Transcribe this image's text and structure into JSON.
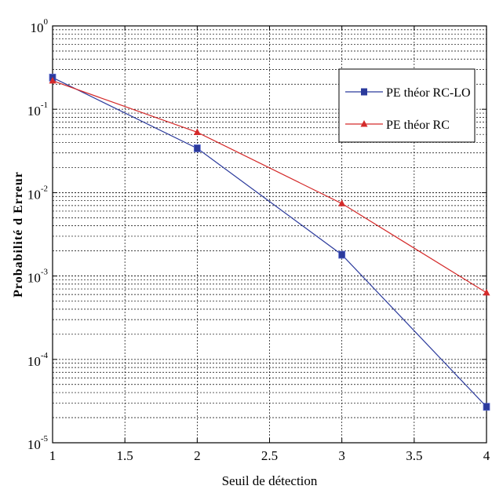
{
  "chart_data": {
    "type": "line",
    "title": "",
    "xlabel": "Seuil de détection",
    "ylabel": "Probabilité d Erreur",
    "xlim": [
      1,
      4
    ],
    "ylim": [
      1e-05,
      1
    ],
    "yscale": "log",
    "grid": true,
    "legend_position": "top-right",
    "xticks": [
      1,
      1.5,
      2,
      2.5,
      3,
      3.5,
      4
    ],
    "xtick_labels": [
      "1",
      "1.5",
      "2",
      "2.5",
      "3",
      "3.5",
      "4"
    ],
    "yticks": [
      {
        "value": 1,
        "base": "10",
        "exp": "0"
      },
      {
        "value": 0.1,
        "base": "10",
        "exp": "-1"
      },
      {
        "value": 0.01,
        "base": "10",
        "exp": "-2"
      },
      {
        "value": 0.001,
        "base": "10",
        "exp": "-3"
      },
      {
        "value": 0.0001,
        "base": "10",
        "exp": "-4"
      },
      {
        "value": 1e-05,
        "base": "10",
        "exp": "-5"
      }
    ],
    "series": [
      {
        "name": "PE théor RC-LO",
        "color": "#2b3a9c",
        "marker": "square",
        "x": [
          1,
          2,
          3,
          4
        ],
        "y": [
          0.24,
          0.034,
          0.0018,
          2.7e-05
        ]
      },
      {
        "name": "PE théor RC",
        "color": "#d42a2a",
        "marker": "triangle",
        "x": [
          1,
          2,
          3,
          4
        ],
        "y": [
          0.22,
          0.053,
          0.0074,
          0.00063
        ]
      }
    ]
  }
}
